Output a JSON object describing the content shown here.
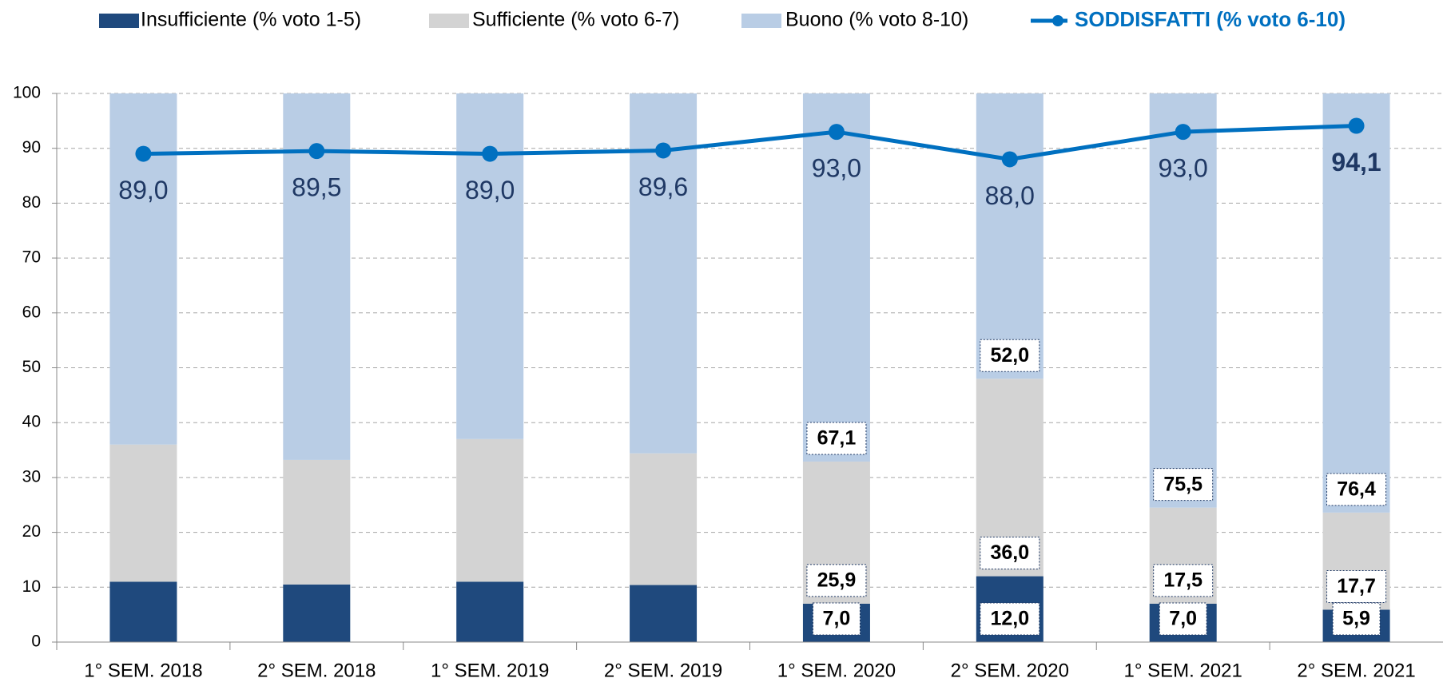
{
  "chart_data": {
    "type": "bar",
    "stacked": true,
    "categories": [
      "1° SEM. 2018",
      "2° SEM. 2018",
      "1° SEM. 2019",
      "2° SEM. 2019",
      "1° SEM. 2020",
      "2° SEM. 2020",
      "1° SEM. 2021",
      "2° SEM. 2021"
    ],
    "series": [
      {
        "name": "Insufficiente (% voto 1-5)",
        "color": "#1f497d",
        "type": "bar",
        "values": [
          11.0,
          10.5,
          11.0,
          10.4,
          7.0,
          12.0,
          7.0,
          5.9
        ],
        "value_labels": [
          null,
          null,
          null,
          null,
          "7,0",
          "12,0",
          "7,0",
          "5,9"
        ]
      },
      {
        "name": "Sufficiente (% voto 6-7)",
        "color": "#d3d3d3",
        "type": "bar",
        "values": [
          25.0,
          22.7,
          26.0,
          24.0,
          25.9,
          36.0,
          17.5,
          17.7
        ],
        "value_labels": [
          null,
          null,
          null,
          null,
          "25,9",
          "36,0",
          "17,5",
          "17,7"
        ]
      },
      {
        "name": "Buono (% voto 8-10)",
        "color": "#b9cde5",
        "type": "bar",
        "values": [
          64.0,
          66.8,
          63.0,
          65.6,
          67.1,
          52.0,
          75.5,
          76.4
        ],
        "value_labels": [
          null,
          null,
          null,
          null,
          "67,1",
          "52,0",
          "75,5",
          "76,4"
        ]
      },
      {
        "name": "SODDISFATTI (% voto 6-10)",
        "color": "#0070c0",
        "type": "line",
        "values": [
          89.0,
          89.5,
          89.0,
          89.6,
          93.0,
          88.0,
          93.0,
          94.1
        ],
        "value_labels": [
          "89,0",
          "89,5",
          "89,0",
          "89,6",
          "93,0",
          "88,0",
          "93,0",
          "94,1"
        ]
      }
    ],
    "ylim": [
      0,
      100
    ],
    "yticks": [
      0,
      10,
      20,
      30,
      40,
      50,
      60,
      70,
      80,
      90,
      100
    ],
    "grid": true,
    "legend": "top"
  }
}
